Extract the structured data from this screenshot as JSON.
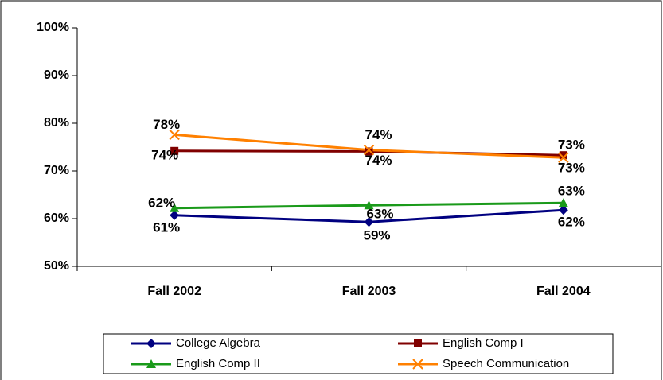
{
  "chart_data": {
    "type": "line",
    "categories": [
      "Fall 2002",
      "Fall 2003",
      "Fall 2004"
    ],
    "series": [
      {
        "name": "College Algebra",
        "color": "#000080",
        "marker": "diamond",
        "values": [
          60.7,
          59.3,
          61.8
        ],
        "value_labels": [
          "61%",
          "59%",
          "62%"
        ]
      },
      {
        "name": "English Comp I",
        "color": "#800000",
        "marker": "square",
        "values": [
          74.2,
          74.1,
          73.3
        ],
        "value_labels": [
          "74%",
          "74%",
          "73%"
        ]
      },
      {
        "name": "English Comp II",
        "color": "#1a9a1a",
        "marker": "triangle",
        "values": [
          62.2,
          62.8,
          63.3
        ],
        "value_labels": [
          "62%",
          "63%",
          "63%"
        ]
      },
      {
        "name": "Speech Communication",
        "color": "#ff8000",
        "marker": "x",
        "values": [
          77.6,
          74.4,
          72.8
        ],
        "value_labels": [
          "78%",
          "74%",
          "73%"
        ]
      }
    ],
    "ylim": [
      50,
      100
    ],
    "yticks": [
      {
        "value": 50,
        "label": "50%"
      },
      {
        "value": 60,
        "label": "60%"
      },
      {
        "value": 70,
        "label": "70%"
      },
      {
        "value": 80,
        "label": "80%"
      },
      {
        "value": 90,
        "label": "90%"
      },
      {
        "value": 100,
        "label": "100%"
      }
    ],
    "grid": false,
    "legend": "bottom"
  }
}
